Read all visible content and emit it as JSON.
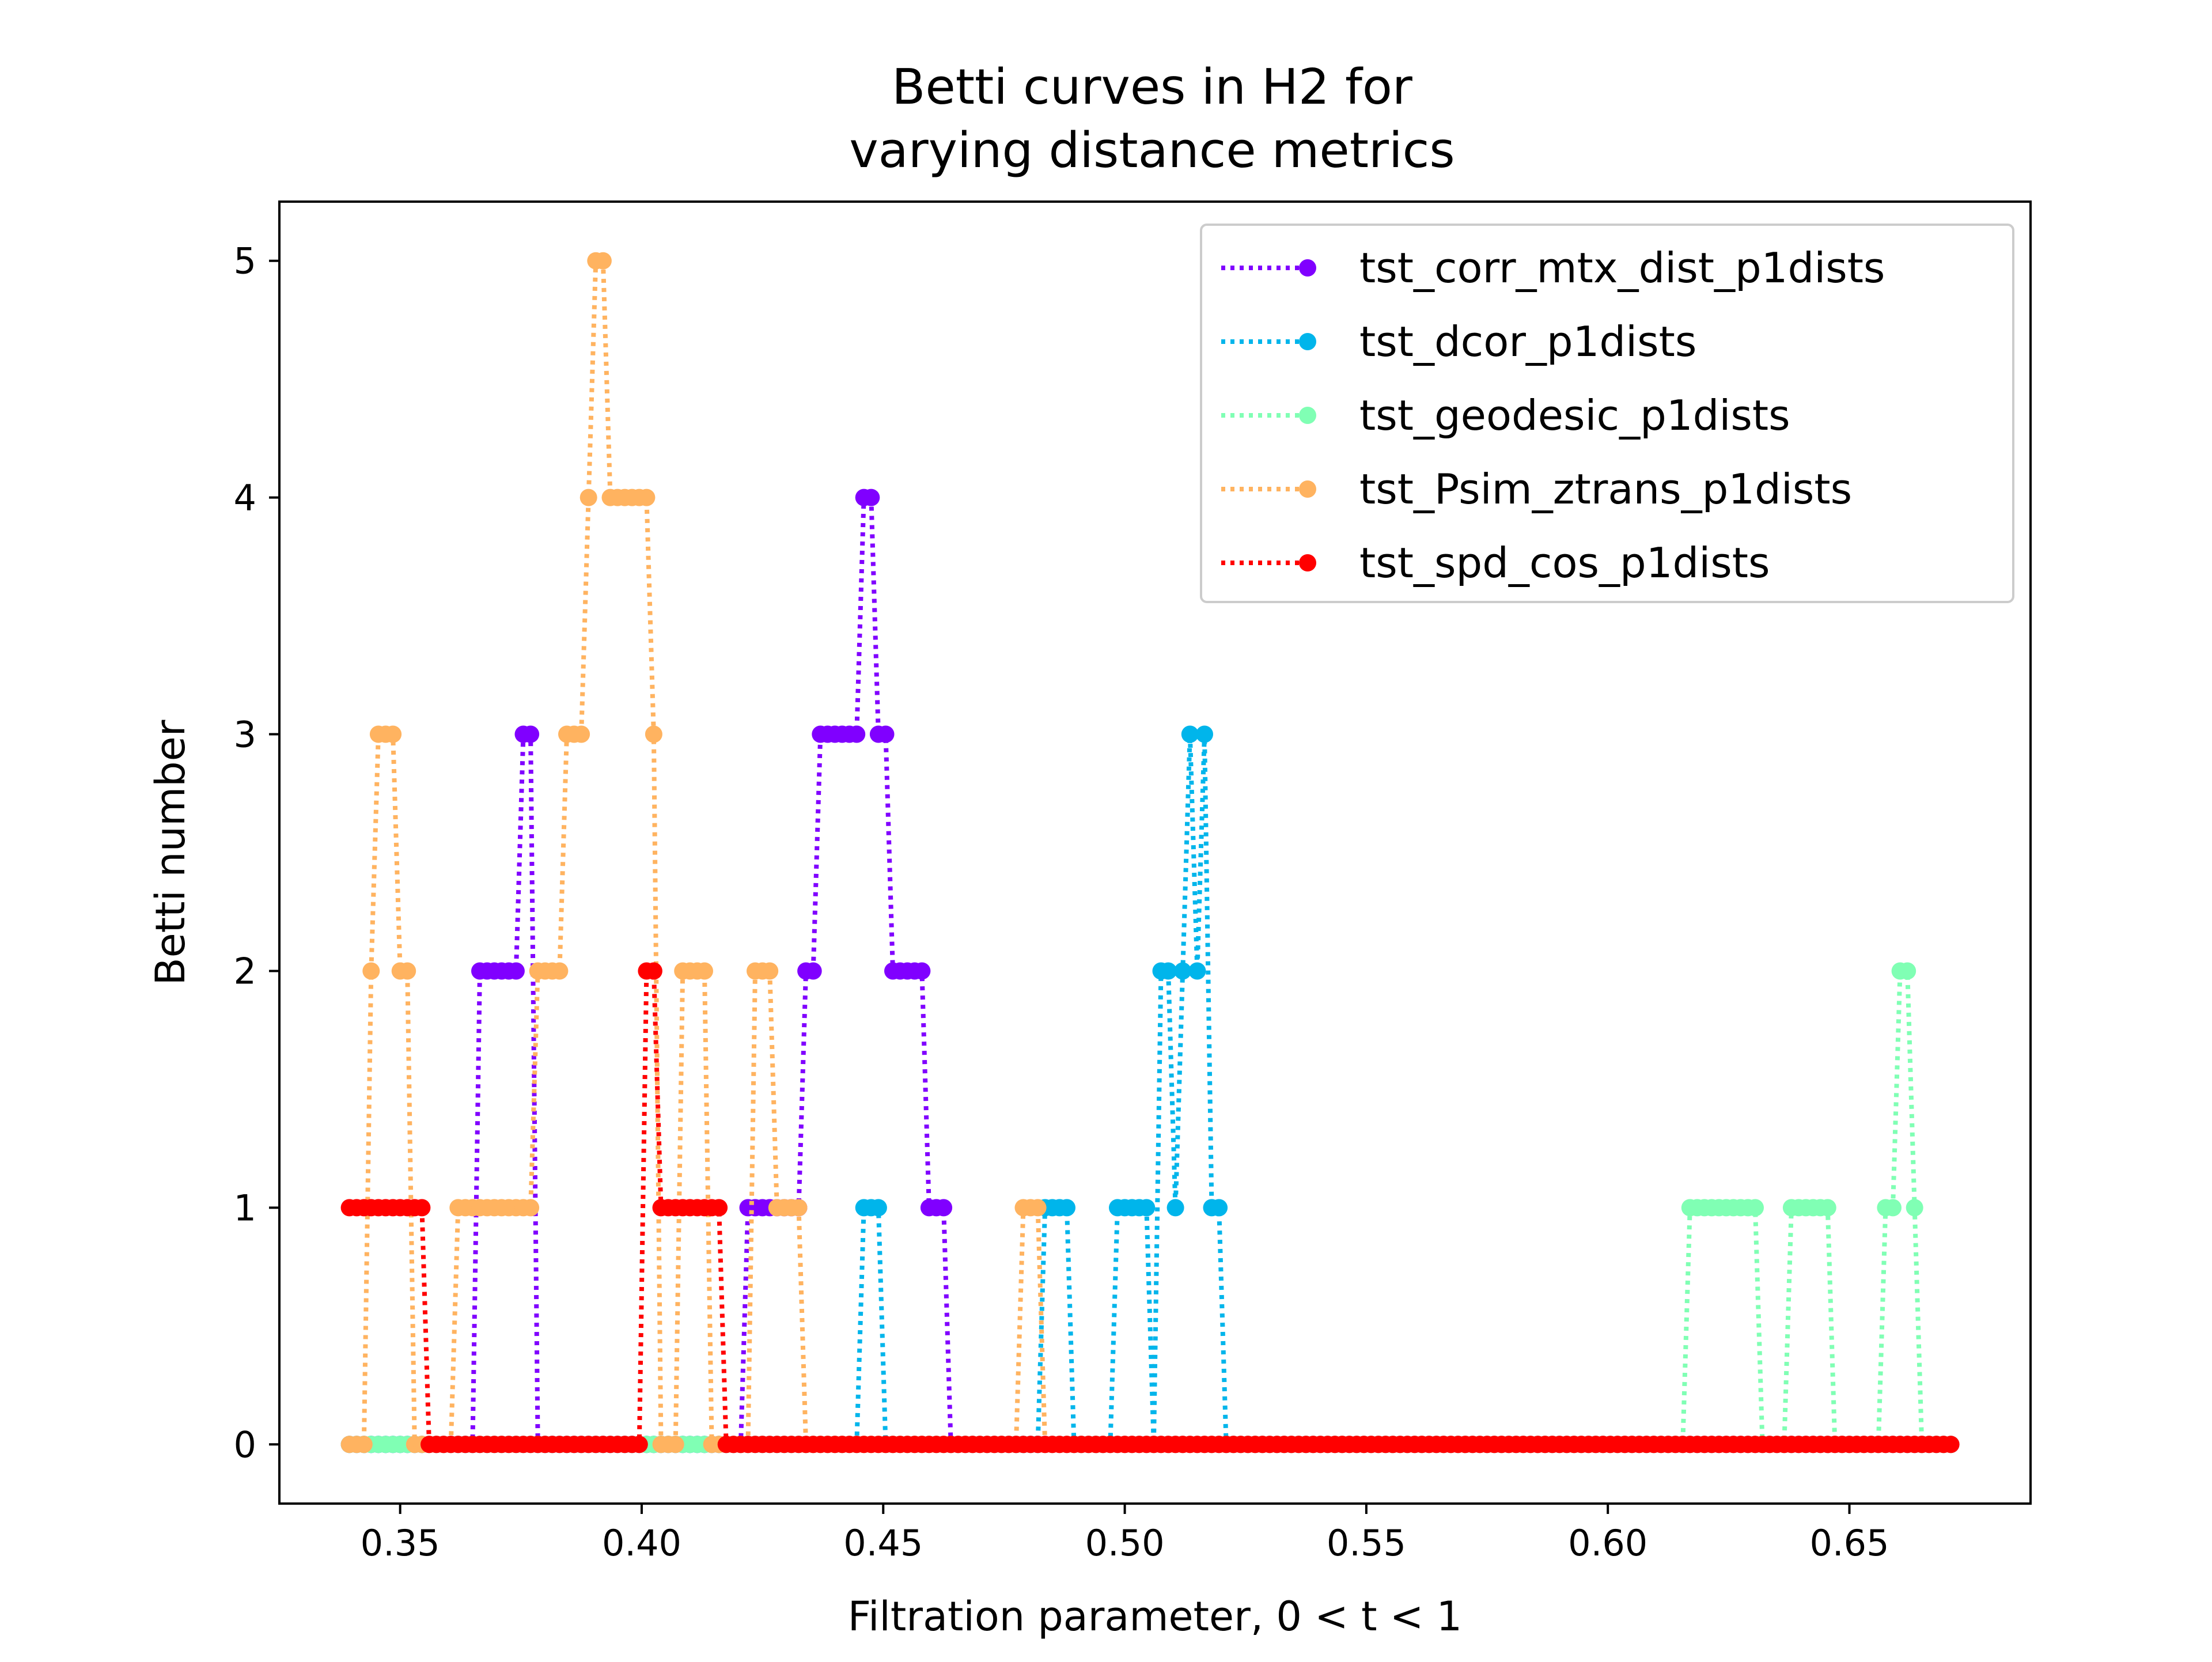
{
  "chart_data": {
    "type": "line",
    "title": [
      "Betti curves in H2 for",
      "varying distance metrics"
    ],
    "xlabel": "Filtration parameter, 0 < t < 1",
    "ylabel": "Betti number",
    "xlim": [
      0.325,
      0.6875
    ],
    "ylim": [
      -0.25,
      5.25
    ],
    "x_ticks": [
      0.35,
      0.4,
      0.45,
      0.5,
      0.55,
      0.6,
      0.65
    ],
    "x_tick_labels": [
      "0.35",
      "0.40",
      "0.45",
      "0.50",
      "0.55",
      "0.60",
      "0.65"
    ],
    "y_ticks": [
      0,
      1,
      2,
      3,
      4,
      5
    ],
    "y_tick_labels": [
      "0",
      "1",
      "2",
      "3",
      "4",
      "5"
    ],
    "grid": false,
    "legend_position": "top-right",
    "step_x": 0.0015,
    "x_start": 0.3395,
    "series": [
      {
        "name": "tst_corr_mtx_dist_p1dists",
        "color": "#8000ff",
        "nonzero": [
          [
            0.3665,
            0.3755,
            2
          ],
          [
            0.3755,
            0.377,
            3
          ],
          [
            0.368,
            0.377,
            2
          ],
          [
            0.422,
            0.434,
            1
          ],
          [
            0.434,
            0.437,
            2
          ],
          [
            0.437,
            0.443,
            3
          ],
          [
            0.443,
            0.4445,
            2
          ],
          [
            0.4445,
            0.446,
            3
          ],
          [
            0.446,
            0.4475,
            4
          ],
          [
            0.4475,
            0.449,
            2
          ],
          [
            0.449,
            0.4505,
            3
          ],
          [
            0.4505,
            0.458,
            2
          ],
          [
            0.458,
            0.4625,
            1
          ]
        ]
      },
      {
        "name": "tst_dcor_p1dists",
        "color": "#00b5eb",
        "nonzero": [
          [
            0.446,
            0.449,
            1
          ],
          [
            0.4835,
            0.488,
            1
          ],
          [
            0.4985,
            0.505,
            1
          ],
          [
            0.5065,
            0.5095,
            2
          ],
          [
            0.5095,
            0.511,
            1
          ],
          [
            0.511,
            0.5125,
            2
          ],
          [
            0.5125,
            0.514,
            3
          ],
          [
            0.514,
            0.5155,
            2
          ],
          [
            0.5155,
            0.517,
            3
          ],
          [
            0.517,
            0.52,
            1
          ]
        ]
      },
      {
        "name": "tst_geodesic_p1dists",
        "color": "#80ffb4",
        "nonzero": [
          [
            0.616,
            0.631,
            1
          ],
          [
            0.637,
            0.646,
            1
          ],
          [
            0.6565,
            0.6595,
            1
          ],
          [
            0.6595,
            0.6625,
            2
          ],
          [
            0.6625,
            0.664,
            1
          ]
        ]
      },
      {
        "name": "tst_Psim_ztrans_p1dists",
        "color": "#ffb360",
        "nonzero": [
          [
            0.344,
            0.3455,
            2
          ],
          [
            0.3455,
            0.3485,
            3
          ],
          [
            0.3485,
            0.3515,
            2
          ],
          [
            0.362,
            0.3725,
            1
          ],
          [
            0.374,
            0.3785,
            1
          ],
          [
            0.3785,
            0.3845,
            2
          ],
          [
            0.3845,
            0.389,
            3
          ],
          [
            0.389,
            0.3905,
            4
          ],
          [
            0.3905,
            0.392,
            5
          ],
          [
            0.392,
            0.401,
            4
          ],
          [
            0.401,
            0.4025,
            3
          ],
          [
            0.4085,
            0.413,
            2
          ],
          [
            0.4235,
            0.4265,
            2
          ],
          [
            0.4265,
            0.4325,
            1
          ],
          [
            0.479,
            0.482,
            1
          ]
        ]
      },
      {
        "name": "tst_spd_cos_p1dists",
        "color": "#ff0000",
        "nonzero": [
          [
            0.3395,
            0.3545,
            1
          ],
          [
            0.401,
            0.4025,
            2
          ],
          [
            0.401,
            0.416,
            1
          ]
        ]
      }
    ],
    "series_x_end": [
      0.6715,
      0.6715,
      0.6715,
      0.6715,
      0.6715
    ]
  }
}
